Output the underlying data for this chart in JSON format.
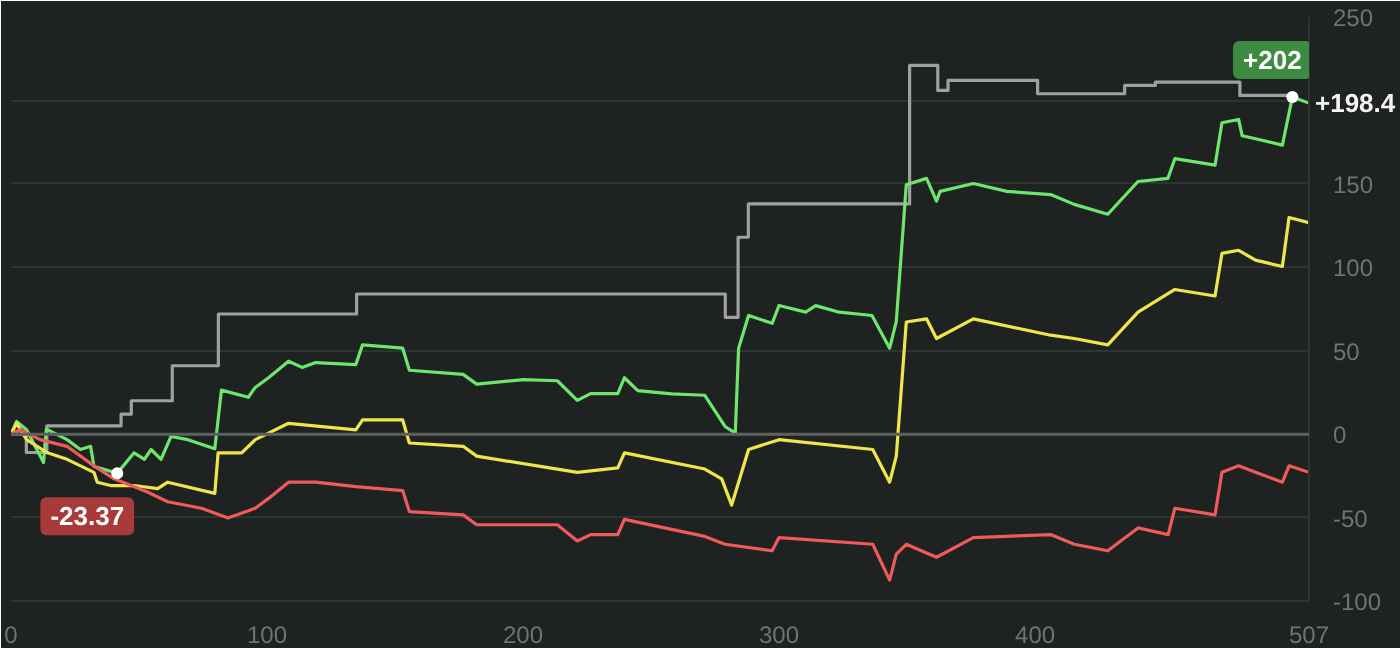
{
  "chart_data": {
    "type": "line",
    "xlim": [
      0,
      507
    ],
    "ylim": [
      -100,
      250
    ],
    "xticks": [
      0,
      100,
      200,
      300,
      400,
      507
    ],
    "yticks": [
      -100,
      -50,
      0,
      50,
      100,
      150,
      {
        "value": 200,
        "label": null
      },
      250
    ],
    "grid": "y",
    "marker": "none",
    "line_style": "solid",
    "ref_lines": [
      {
        "axis": "y",
        "value": 0,
        "label": null,
        "color": "#5c615d"
      }
    ],
    "annotations": [
      {
        "text": "+202",
        "x": 500.5,
        "y": 202
      },
      {
        "text": "+198.4",
        "x": 507,
        "y": 198.4
      },
      {
        "text": "-23.37",
        "x": 41.5,
        "y": -23.37
      }
    ],
    "series": [
      {
        "type": "step",
        "color": "#a0a0a0",
        "x": [
          0,
          6,
          14,
          43,
          47,
          63,
          81,
          135,
          279,
          284,
          288,
          351,
          362,
          366,
          401,
          435,
          447,
          480,
          500.5
        ],
        "values": [
          0,
          -11,
          5,
          12,
          20,
          41,
          72,
          84,
          70,
          118,
          138,
          221,
          206,
          212,
          204,
          209,
          211,
          203,
          202
        ]
      },
      {
        "color": "#6ee66e",
        "x": [
          0,
          2.2,
          6.1,
          12.7,
          13.8,
          21.9,
          27.1,
          31.1,
          32.4,
          41.5,
          48.1,
          52.1,
          54.7,
          58.6,
          62.5,
          69.1,
          79.6,
          82.2,
          92.7,
          95.4,
          100.6,
          108.4,
          113.7,
          119,
          134.7,
          137.3,
          153,
          155.6,
          176.6,
          181.9,
          200.2,
          213.4,
          221.2,
          226.4,
          237,
          239.6,
          244.8,
          258,
          271,
          278.9,
          282.9,
          284.2,
          288.1,
          297.3,
          300,
          310.4,
          314.3,
          323.5,
          336.3,
          343.2,
          345.8,
          349.7,
          357.6,
          361.5,
          362.9,
          375.9,
          389,
          406.1,
          415.3,
          428.4,
          440.2,
          451.9,
          454.6,
          470.3,
          473,
          479.5,
          480.9,
          486.1,
          496.6,
          500.5,
          507
        ],
        "values": [
          0,
          7.6,
          2.6,
          -17,
          3,
          -3.3,
          -9.2,
          -7.3,
          -19.4,
          -23.37,
          -11.2,
          -15.1,
          -9.2,
          -15.1,
          -1.4,
          -3.3,
          -8.8,
          26.4,
          22.1,
          28,
          33.8,
          43.7,
          40,
          42.9,
          41.7,
          53.5,
          51.5,
          38.3,
          35.8,
          30,
          32.7,
          32,
          20.2,
          24.3,
          24.3,
          33.8,
          26.1,
          24.1,
          23.3,
          4.6,
          0.6,
          51.5,
          71.1,
          66.4,
          77.1,
          73.1,
          77,
          73.1,
          71.1,
          51.5,
          67.6,
          149.5,
          153.3,
          139.6,
          145.5,
          150.2,
          145.5,
          143.6,
          137.7,
          131.8,
          151.4,
          153.3,
          165.1,
          161.2,
          186.6,
          188.6,
          178.8,
          177,
          173.2,
          202,
          198.4
        ]
      },
      {
        "color": "#f0e64a",
        "x": [
          0,
          2.2,
          6.1,
          14,
          21.9,
          32.4,
          33.7,
          38.9,
          48.1,
          57.3,
          61.2,
          79.6,
          80.9,
          90.1,
          95.4,
          100.6,
          108.4,
          134.7,
          137.3,
          153,
          155.6,
          176.6,
          181.9,
          221.2,
          237,
          239.6,
          271,
          277.6,
          281.5,
          284.2,
          288.1,
          300,
          336.6,
          343.2,
          345.8,
          349.7,
          357.6,
          361.5,
          375.9,
          406.1,
          415.3,
          428.4,
          440.2,
          454.6,
          470.3,
          473,
          479.5,
          486.1,
          496.6,
          499.2,
          507
        ],
        "values": [
          0,
          6.5,
          -3.3,
          -11,
          -15.1,
          -22.9,
          -28.8,
          -30.8,
          -30.8,
          -32.7,
          -28.8,
          -35.5,
          -11.2,
          -11.2,
          -3.3,
          0.6,
          6.5,
          2.6,
          8.5,
          8.5,
          -5.3,
          -7.3,
          -13.2,
          -22.9,
          -20.2,
          -11.2,
          -20.9,
          -26.8,
          -42.5,
          -28.8,
          -9.2,
          -3.3,
          -9.2,
          -28.8,
          -13.2,
          67.2,
          69.1,
          57.3,
          69.1,
          59.3,
          57.3,
          53.5,
          73.1,
          86.7,
          82.8,
          108.3,
          110.2,
          104.3,
          100.5,
          129.8,
          126.7
        ]
      },
      {
        "color": "#f05a5a",
        "x": [
          0,
          3.5,
          11.4,
          21.9,
          32.4,
          40.3,
          53.3,
          61.2,
          74.4,
          84.8,
          95.4,
          100.6,
          108.4,
          119,
          134.7,
          153,
          155.6,
          176.6,
          181.9,
          213.4,
          221.2,
          226.4,
          237,
          239.6,
          271,
          278.9,
          297.3,
          300,
          336.6,
          343.2,
          345.8,
          349.7,
          361.5,
          375.9,
          406.1,
          415.3,
          428.4,
          440.2,
          452,
          454.6,
          470.3,
          473,
          479.5,
          486.1,
          496.6,
          499.2,
          507
        ],
        "values": [
          0,
          2.6,
          -3.3,
          -7.3,
          -19,
          -26.8,
          -34.7,
          -40.5,
          -44.4,
          -50.3,
          -44.4,
          -38.5,
          -28.8,
          -28.8,
          -31.5,
          -33.8,
          -46.4,
          -48.4,
          -54.3,
          -54.3,
          -64,
          -60.2,
          -60.2,
          -51.1,
          -61.3,
          -66,
          -69.9,
          -62,
          -66,
          -87.5,
          -71.9,
          -66,
          -73.8,
          -62,
          -60.2,
          -66,
          -69.9,
          -56.2,
          -60.2,
          -44.4,
          -48.4,
          -22.9,
          -19,
          -22.9,
          -28.8,
          -19,
          -22.9
        ]
      }
    ]
  }
}
